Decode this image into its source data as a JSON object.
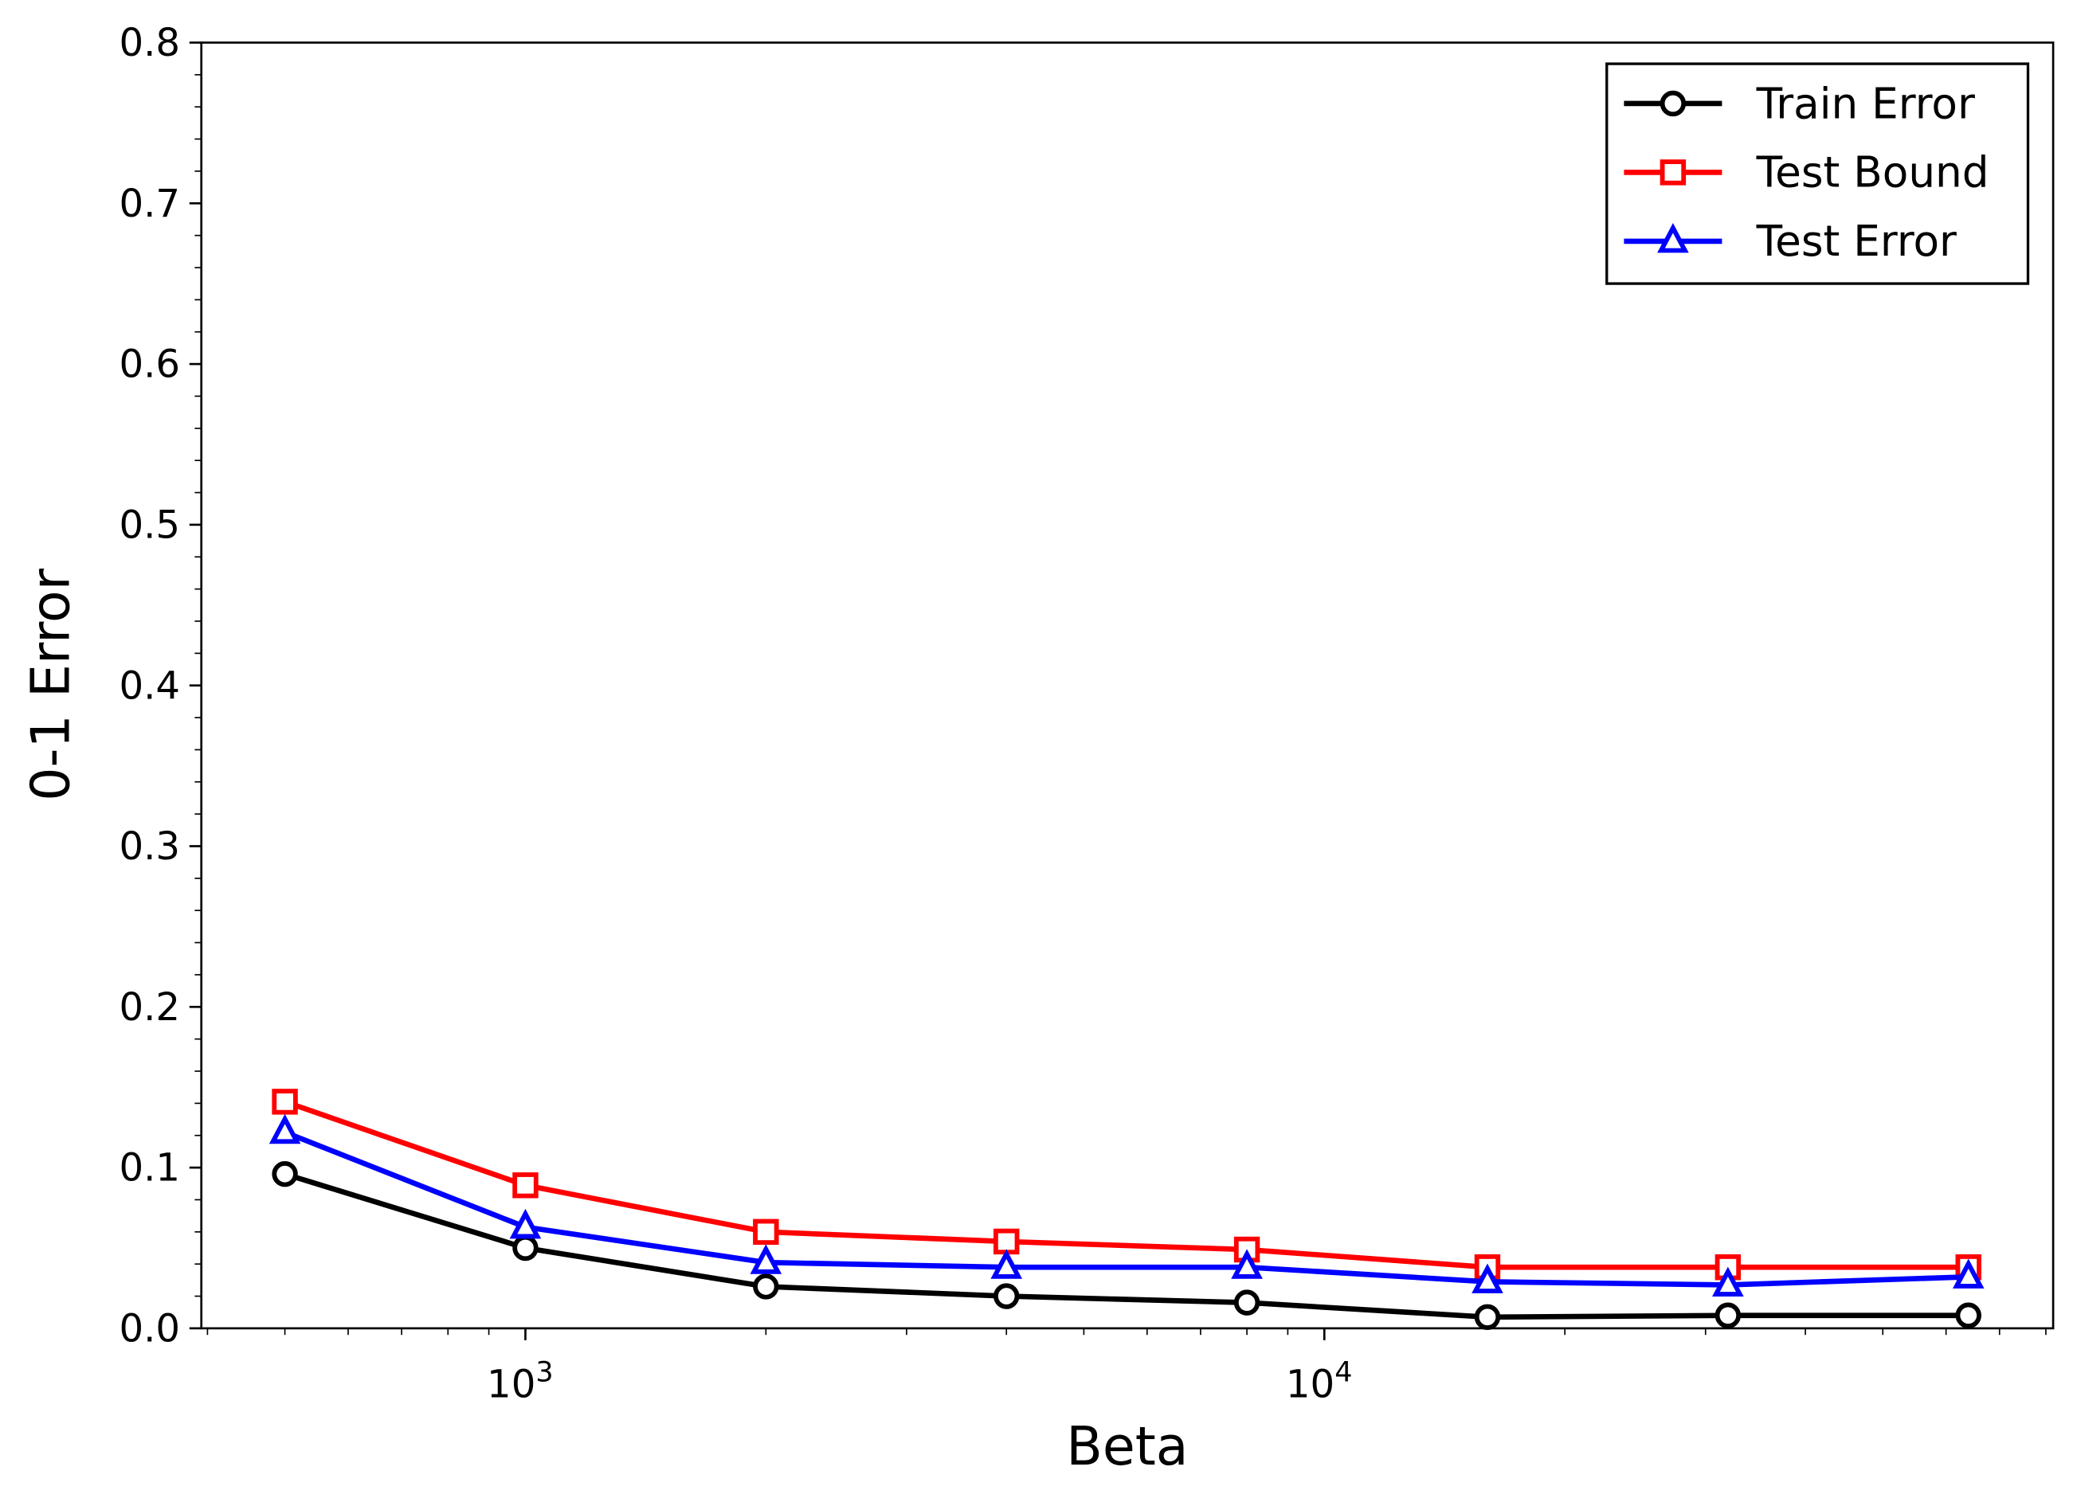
{
  "chart_data": {
    "type": "line",
    "title": "",
    "xlabel": "Beta",
    "ylabel": "0-1 Error",
    "xscale": "log",
    "xlim": [
      393,
      81700
    ],
    "ylim": [
      0,
      0.8
    ],
    "grid": false,
    "legend_position": "top-right",
    "x": [
      500,
      1000,
      2000,
      4000,
      8000,
      16000,
      32000,
      64000
    ],
    "xticks": [
      {
        "value": 1000,
        "base": "10",
        "exp": "3"
      },
      {
        "value": 10000,
        "base": "10",
        "exp": "4"
      }
    ],
    "yticks": [
      "0.0",
      "0.1",
      "0.2",
      "0.3",
      "0.4",
      "0.5",
      "0.6",
      "0.7",
      "0.8"
    ],
    "series": [
      {
        "name": "Train Error",
        "color": "#000000",
        "marker": "circle",
        "values": [
          0.096,
          0.05,
          0.026,
          0.02,
          0.016,
          0.007,
          0.008,
          0.008
        ]
      },
      {
        "name": "Test Bound",
        "color": "#ff0000",
        "marker": "square",
        "values": [
          0.141,
          0.089,
          0.06,
          0.054,
          0.049,
          0.038,
          0.038,
          0.038
        ]
      },
      {
        "name": "Test Error",
        "color": "#0000ff",
        "marker": "triangle",
        "values": [
          0.122,
          0.063,
          0.041,
          0.038,
          0.038,
          0.029,
          0.027,
          0.032
        ]
      }
    ]
  }
}
